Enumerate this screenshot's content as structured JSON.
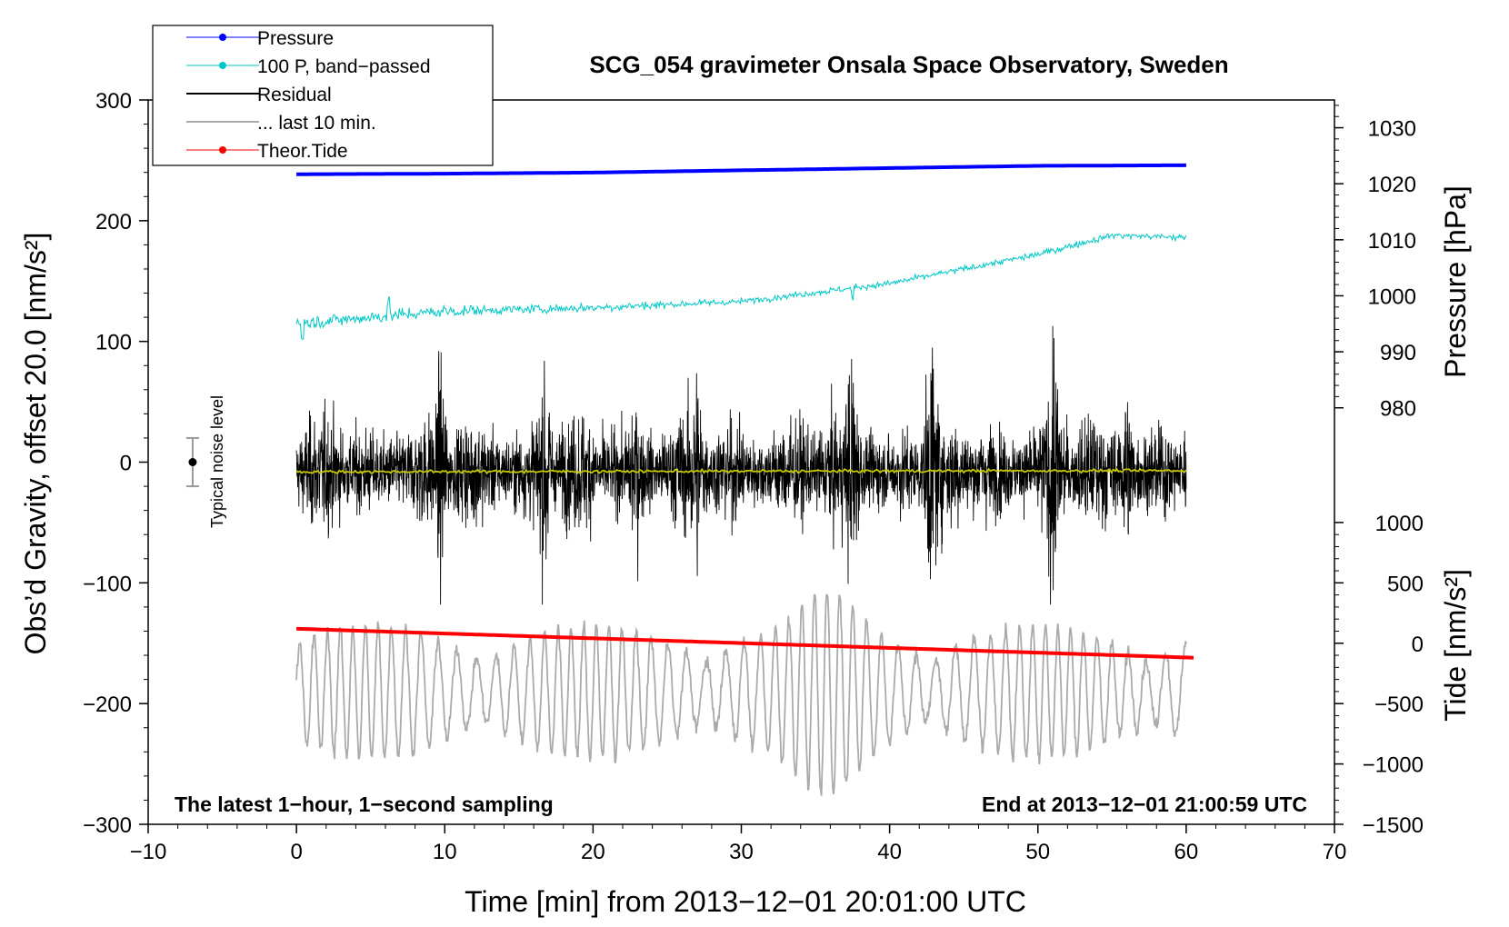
{
  "chart_data": {
    "type": "line",
    "title": "SCG_054 gravimeter Onsala Space Observatory, Sweden",
    "xlabel": "Time [min] from 2013−12−01 20:01:00 UTC",
    "ylabel_left": "Obs’d Gravity, offset 20.0 [nm/s²]",
    "ylabel_right_top": "Pressure [hPa]",
    "ylabel_right_bottom": "Tide [nm/s²]",
    "xlim": [
      -10,
      70
    ],
    "ylim_left": [
      -300,
      300
    ],
    "x_ticks": [
      -10,
      0,
      10,
      20,
      30,
      40,
      50,
      60,
      70
    ],
    "x_tick_labels": [
      "−10",
      "0",
      "10",
      "20",
      "30",
      "40",
      "50",
      "60",
      "70"
    ],
    "y_ticks_left": [
      300,
      200,
      100,
      0,
      -100,
      -200,
      -300
    ],
    "y_tick_labels_left": [
      "300",
      "200",
      "100",
      "0",
      "−100",
      "−200",
      "−300"
    ],
    "pressure_axis": {
      "ticks": [
        1030,
        1020,
        1010,
        1000,
        990,
        980
      ],
      "tick_labels": [
        "1030",
        "1020",
        "1010",
        "1000",
        "990",
        "980"
      ],
      "map_to_left": {
        "pressure": [
          980,
          1030
        ],
        "left": [
          45,
          277
        ]
      }
    },
    "tide_axis": {
      "ticks": [
        1000,
        500,
        0,
        -500,
        -1000,
        -1500
      ],
      "tick_labels": [
        "1000",
        "500",
        "0",
        "−500",
        "−1000",
        "−1500"
      ],
      "map_to_left": {
        "tide": [
          -1500,
          1000
        ],
        "left": [
          -300,
          -50
        ]
      }
    },
    "legend": [
      {
        "label": "Pressure",
        "color": "#0000ff",
        "marker": true
      },
      {
        "label": "100 P, band−passed",
        "color": "#00c8c8",
        "marker": true
      },
      {
        "label": "Residual",
        "color": "#000000",
        "marker": false
      },
      {
        "label": "... last 10 min.",
        "color": "#aaaaaa",
        "marker": false
      },
      {
        "label": "Theor.Tide",
        "color": "#ff0000",
        "marker": true
      }
    ],
    "series": [
      {
        "name": "Pressure",
        "unit": "hPa",
        "x": [
          0,
          10,
          20,
          30,
          40,
          50,
          60
        ],
        "values": [
          1021.7,
          1021.8,
          1022.0,
          1022.4,
          1022.8,
          1023.2,
          1023.3
        ]
      },
      {
        "name": "100 P, band−passed",
        "unit": "nm/s2",
        "x": [
          0,
          10,
          20,
          30,
          40,
          50,
          55,
          60
        ],
        "values": [
          115,
          125,
          128,
          133,
          148,
          172,
          188,
          186
        ]
      },
      {
        "name": "Residual",
        "unit": "nm/s2",
        "x": [
          0,
          60
        ],
        "mean": -8,
        "amplitude": 55
      },
      {
        "name": "Residual smoothed",
        "unit": "nm/s2",
        "x": [
          0,
          60
        ],
        "values": [
          -8,
          -7
        ]
      },
      {
        "name": "Theor.Tide",
        "unit": "nm/s2",
        "x": [
          0,
          60.5
        ],
        "values": [
          -138,
          -162
        ]
      },
      {
        "name": "... last 10 min.",
        "unit": "nm/s2",
        "x": [
          0,
          60
        ],
        "mean": -200,
        "amplitude": 55
      }
    ],
    "noise_marker": {
      "label": "Typical noise level",
      "x": -7,
      "center": 0,
      "range": [
        -20,
        20
      ]
    },
    "notes": {
      "bottom_left": "The latest 1−hour, 1−second sampling",
      "bottom_right": "End at 2013−12−01 21:00:59 UTC"
    },
    "colors": {
      "pressure": "#0000ff",
      "bandpassed": "#00c8c8",
      "residual": "#000000",
      "smoothed": "#c8c800",
      "last10": "#aaaaaa",
      "tide": "#ff0000"
    }
  }
}
